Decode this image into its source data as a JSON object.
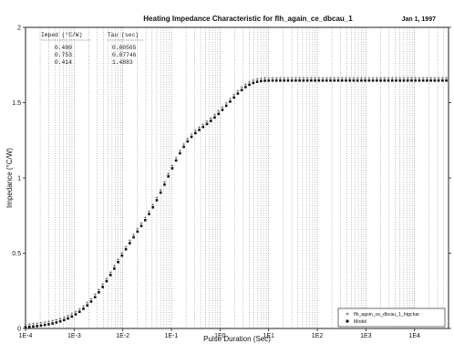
{
  "chart_data": {
    "type": "scatter",
    "title": "Heating Impedance Characteristic for flh_again_ce_dbcau_1",
    "date": "Jan 1, 1997",
    "xlabel": "Pulse Duration (Sec)",
    "ylabel": "Impedance (°C/W)",
    "xscale": "log",
    "xlim": [
      0.0001,
      50000
    ],
    "ylim": [
      0,
      2
    ],
    "x_tick_labels": [
      "1E-4",
      "1E-3",
      "1E-2",
      "1E-1",
      "1E0",
      "1E1",
      "1E2",
      "1E3",
      "1E4"
    ],
    "y_tick_labels": [
      "0",
      "0.5",
      "1",
      "1.5",
      "2"
    ],
    "grid": "vertical-dotted",
    "legend_position": "bottom-right",
    "model_table": {
      "headers": [
        "Imped (°C/W)",
        "Tau (sec)"
      ],
      "rows": [
        [
          "0.480",
          "0.00565"
        ],
        [
          "0.753",
          "0.07746"
        ],
        [
          "0.414",
          "1.4883"
        ]
      ]
    },
    "series": [
      {
        "name": "flh_agsin_ce_dbcau_1_htgchar",
        "marker": "plus",
        "model": {
          "R": [
            0.48,
            0.753,
            0.414
          ],
          "tau": [
            0.00565,
            0.07746,
            1.4883
          ],
          "offset": 0.018
        }
      },
      {
        "name": "Model",
        "marker": "square",
        "model": {
          "R": [
            0.48,
            0.753,
            0.414
          ],
          "tau": [
            0.00565,
            0.07746,
            1.4883
          ],
          "offset": 0.0
        }
      }
    ]
  }
}
